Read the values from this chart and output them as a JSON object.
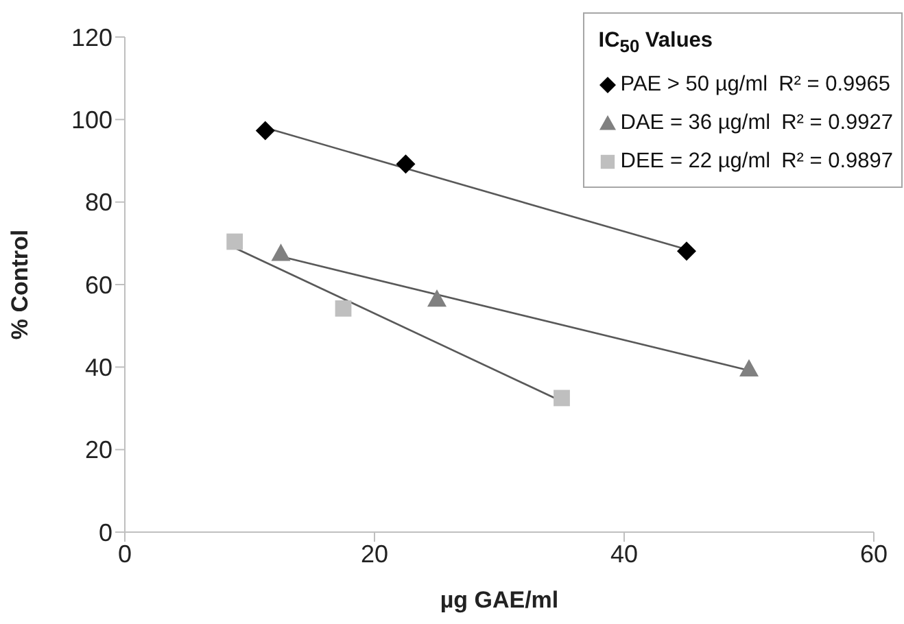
{
  "chart_data": {
    "type": "scatter",
    "xlabel": "µg GAE/ml",
    "ylabel": "% Control",
    "legend_title": "IC$_{50}$ Values",
    "annotations": [
      "R² = 0.9965",
      "R² = 0.9927",
      "R² = 0.9897"
    ],
    "xlim": [
      0,
      60
    ],
    "xticks": [
      0,
      20,
      40,
      60
    ],
    "ylim": [
      0,
      120
    ],
    "yticks": [
      0,
      20,
      40,
      60,
      80,
      100,
      120
    ],
    "grid": false,
    "legend": "top right",
    "series": [
      {
        "name": "PAE > 50 µg/ml",
        "color": "#000000",
        "marker": "diamond",
        "x": [
          11.25,
          22.5,
          45
        ],
        "values": [
          97.3,
          89.2,
          68.1
        ]
      },
      {
        "name": "DAE = 36 µg/ml",
        "color": "#808080",
        "marker": "triangle",
        "x": [
          12.5,
          25,
          50
        ],
        "values": [
          67.6,
          56.5,
          39.6
        ]
      },
      {
        "name": "DEE = 22 µg/ml",
        "color": "#bfbfbf",
        "marker": "square",
        "x": [
          8.8,
          17.5,
          35
        ],
        "values": [
          70.4,
          54.2,
          32.5
        ]
      },
      {
        "type": "line",
        "color": "#595959",
        "marker": "none",
        "x": [
          11.25,
          45
        ],
        "values": [
          98.0,
          68.5
        ]
      },
      {
        "type": "line",
        "color": "#595959",
        "marker": "none",
        "x": [
          12.5,
          50
        ],
        "values": [
          66.8,
          39.2
        ]
      },
      {
        "type": "line",
        "color": "#595959",
        "marker": "none",
        "x": [
          8.8,
          35
        ],
        "values": [
          68.9,
          31.7
        ]
      }
    ]
  }
}
